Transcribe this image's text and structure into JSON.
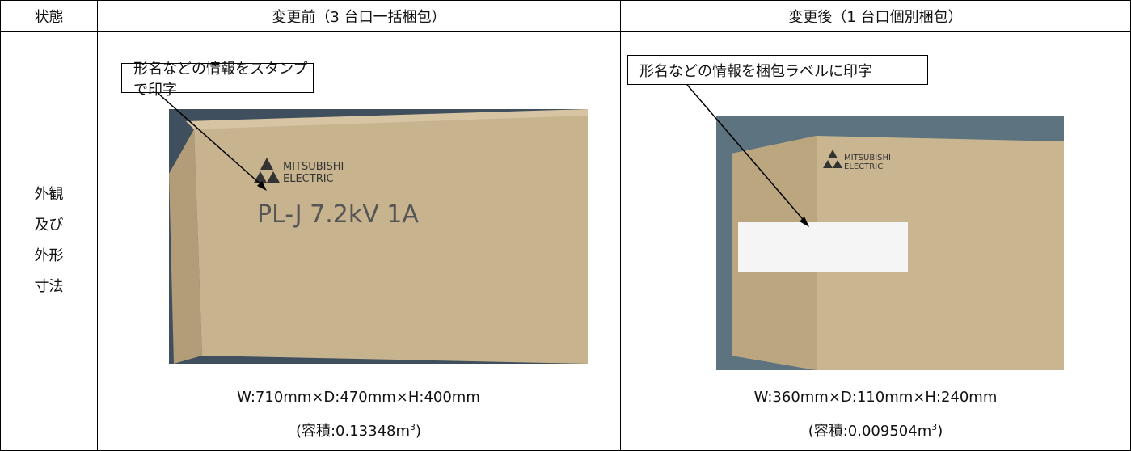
{
  "table": {
    "header": [
      "状態",
      "変更前（3 台口一括梱包）",
      "変更後（1 台口個別梱包）"
    ],
    "row": {
      "label": [
        "外観",
        "及び",
        "外形",
        "寸法"
      ],
      "before": {
        "callout": "形名などの情報をスタンプで印字",
        "photo_text": [
          "MITSUBISHI",
          "ELECTRIC",
          "PL-J 7.2kV 1A"
        ],
        "dimensions": "W:710mm×D:470mm×H:400mm",
        "volume": {
          "text": "(容積:0.13348m",
          "sup": "3",
          "end": ")"
        }
      },
      "after": {
        "callout": "形名などの情報を梱包ラベルに印字",
        "photo_text": [
          "MITSUBISHI",
          "ELECTRIC"
        ],
        "dimensions": "W:360mm×D:110mm×H:240mm",
        "volume": {
          "text": "(容積:0.009504m",
          "sup": "3",
          "end": ")"
        }
      }
    }
  }
}
